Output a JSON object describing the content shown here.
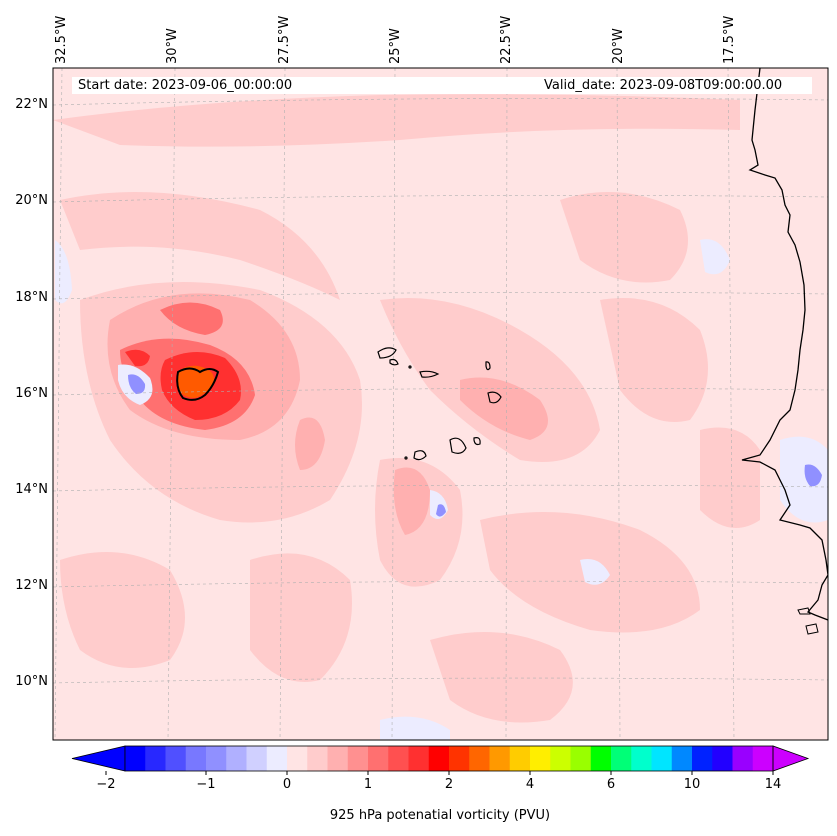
{
  "map": {
    "start_date": "Start date: 2023-09-06_00:00:00",
    "valid_date": "Valid_date: 2023-09-08T09:00:00.00",
    "lon_labels": [
      "32.5°W",
      "30°W",
      "27.5°W",
      "25°W",
      "22.5°W",
      "20°W",
      "17.5°W"
    ],
    "lat_labels": [
      "22°N",
      "20°N",
      "18°N",
      "16°N",
      "14°N",
      "12°N",
      "10°N"
    ]
  },
  "colorbar": {
    "title": "925 hPa potenatial vorticity (PVU)",
    "ticks": [
      "−2",
      "−1",
      "0",
      "1",
      "2",
      "4",
      "6",
      "10",
      "14"
    ],
    "colors": [
      "#0000ff",
      "#2828ff",
      "#5050ff",
      "#7878ff",
      "#9090ff",
      "#b0b0ff",
      "#d0d0ff",
      "#ececff",
      "#ffe4e4",
      "#ffcccc",
      "#ffb0b0",
      "#ff9090",
      "#ff7070",
      "#ff5050",
      "#ff3030",
      "#ff0000",
      "#ff3300",
      "#ff6600",
      "#ff9900",
      "#ffcc00",
      "#ffee00",
      "#ccff00",
      "#99ff00",
      "#00ff00",
      "#00ff77",
      "#00ffcc",
      "#00e5ff",
      "#0088ff",
      "#0022ff",
      "#2200ff",
      "#9900ff",
      "#cc00ff"
    ]
  },
  "colors": {
    "background_field": "#ffe4e4",
    "weak_positive": "#ffcccc",
    "moderate_positive": "#ffb0b0",
    "strong_positive": "#ff7070",
    "max_positive": "#ff3030",
    "core": "#ff5a00",
    "weak_negative": "#ececff",
    "moderate_negative": "#9090ff"
  }
}
